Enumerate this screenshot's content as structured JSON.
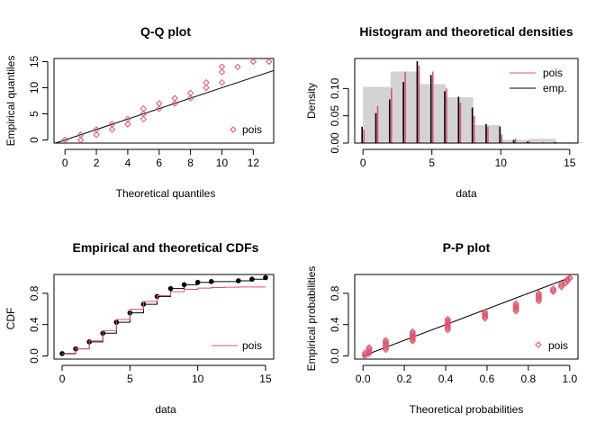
{
  "colors": {
    "theoretical": "#DF536B",
    "empirical": "#000000",
    "hist_fill": "#D3D3D3"
  },
  "chart_data": [
    {
      "type": "scatter",
      "title": "Q-Q plot",
      "xlabel": "Theoretical quantiles",
      "ylabel": "Empirical quantiles",
      "xlim": [
        -0.7,
        13.3
      ],
      "ylim": [
        -0.6,
        15.6
      ],
      "xticks": [
        0,
        2,
        4,
        6,
        8,
        10,
        12
      ],
      "yticks": [
        0,
        5,
        10,
        15
      ],
      "legend": [
        "pois"
      ],
      "legend_position": "bottom-right",
      "reference_line": [
        [
          -1,
          -1
        ],
        [
          14,
          14
        ]
      ],
      "x": [
        0,
        1,
        1,
        2,
        2,
        3,
        3,
        4,
        4,
        5,
        5,
        5,
        6,
        6,
        7,
        7,
        8,
        8,
        9,
        9,
        10,
        10,
        10,
        11,
        12,
        13
      ],
      "y": [
        0,
        0,
        1,
        1,
        2,
        2,
        3,
        3,
        4,
        4,
        5,
        6,
        6,
        7,
        7,
        8,
        8,
        9,
        10,
        11,
        11,
        13,
        14,
        14,
        15,
        15
      ]
    },
    {
      "type": "bar",
      "title": "Histogram and theoretical densities",
      "xlabel": "data",
      "ylabel": "Density",
      "xlim": [
        -0.6,
        15.6
      ],
      "ylim": [
        0,
        0.155
      ],
      "xticks": [
        0,
        5,
        10,
        15
      ],
      "yticks": [
        0.0,
        0.05,
        0.1
      ],
      "ytick_labels": [
        "0.00",
        "0.05",
        "0.10"
      ],
      "legend": [
        "pois",
        "emp."
      ],
      "legend_position": "top-right",
      "histogram": {
        "bins": [
          [
            0,
            2
          ],
          [
            2,
            4
          ],
          [
            4,
            6
          ],
          [
            6,
            8
          ],
          [
            8,
            10
          ],
          [
            10,
            12
          ],
          [
            12,
            14
          ],
          [
            14,
            16
          ]
        ],
        "density": [
          0.103,
          0.131,
          0.108,
          0.084,
          0.033,
          0.006,
          0.008,
          0.002
        ]
      },
      "x": [
        0,
        1,
        2,
        3,
        4,
        5,
        6,
        7,
        8,
        9,
        10,
        11,
        12,
        13,
        14,
        15
      ],
      "series": [
        {
          "name": "pois",
          "values": [
            0.024,
            0.068,
            0.1,
            0.131,
            0.142,
            0.131,
            0.1,
            0.074,
            0.05,
            0.03,
            0.016,
            0.008,
            0.004,
            0.002,
            0.001,
            0.0005
          ]
        },
        {
          "name": "emp.",
          "values": [
            0.03,
            0.055,
            0.08,
            0.112,
            0.15,
            0.125,
            0.095,
            0.085,
            0.065,
            0.035,
            0.03,
            0.006,
            0.003,
            0.0,
            0.002,
            0.001
          ]
        }
      ]
    },
    {
      "type": "line",
      "title": "Empirical and theoretical CDFs",
      "xlabel": "data",
      "ylabel": "CDF",
      "xlim": [
        -0.6,
        15.6
      ],
      "ylim": [
        -0.04,
        1.04
      ],
      "xticks": [
        0,
        5,
        10,
        15
      ],
      "yticks": [
        0.0,
        0.4,
        0.8
      ],
      "ytick_labels": [
        "0.0",
        "0.4",
        "0.8"
      ],
      "legend": [
        "pois"
      ],
      "legend_position": "bottom-right",
      "series": [
        {
          "name": "empirical",
          "x": [
            0,
            1,
            2,
            3,
            4,
            5,
            6,
            7,
            8,
            9,
            10,
            11,
            13,
            14,
            15
          ],
          "values": [
            0.03,
            0.09,
            0.18,
            0.29,
            0.43,
            0.55,
            0.66,
            0.76,
            0.86,
            0.91,
            0.94,
            0.95,
            0.96,
            0.98,
            1.0
          ]
        },
        {
          "name": "pois",
          "x": [
            0,
            1,
            2,
            3,
            4,
            5,
            6,
            7,
            8,
            9,
            10,
            11,
            12,
            13,
            14,
            15
          ],
          "values": [
            0.024,
            0.092,
            0.192,
            0.323,
            0.465,
            0.596,
            0.696,
            0.77,
            0.82,
            0.85,
            0.866,
            0.874,
            0.878,
            0.88,
            0.881,
            0.882
          ]
        }
      ]
    },
    {
      "type": "scatter",
      "title": "P-P plot",
      "xlabel": "Theoretical probabilities",
      "ylabel": "Empirical probabilities",
      "xlim": [
        -0.04,
        1.04
      ],
      "ylim": [
        -0.04,
        1.04
      ],
      "xticks": [
        0.0,
        0.2,
        0.4,
        0.6,
        0.8,
        1.0
      ],
      "yticks": [
        0.0,
        0.4,
        0.8
      ],
      "xtick_labels": [
        "0.0",
        "0.2",
        "0.4",
        "0.6",
        "0.8",
        "1.0"
      ],
      "ytick_labels": [
        "0.0",
        "0.4",
        "0.8"
      ],
      "legend": [
        "pois"
      ],
      "legend_position": "bottom-right",
      "reference_line": [
        [
          0,
          0
        ],
        [
          1,
          1
        ]
      ],
      "groups": [
        {
          "x": 0.01,
          "y": [
            0.0,
            0.02,
            0.04
          ]
        },
        {
          "x": 0.03,
          "y": [
            0.03,
            0.05,
            0.07,
            0.09,
            0.11
          ]
        },
        {
          "x": 0.11,
          "y": [
            0.08,
            0.1,
            0.12,
            0.14,
            0.16,
            0.18,
            0.2
          ]
        },
        {
          "x": 0.24,
          "y": [
            0.19,
            0.21,
            0.23,
            0.25,
            0.27,
            0.29,
            0.31
          ]
        },
        {
          "x": 0.41,
          "y": [
            0.33,
            0.35,
            0.37,
            0.39,
            0.41,
            0.43,
            0.45,
            0.47
          ]
        },
        {
          "x": 0.59,
          "y": [
            0.48,
            0.5,
            0.52,
            0.54,
            0.56
          ]
        },
        {
          "x": 0.74,
          "y": [
            0.57,
            0.59,
            0.61,
            0.63,
            0.65,
            0.67
          ]
        },
        {
          "x": 0.85,
          "y": [
            0.7,
            0.72,
            0.74,
            0.76,
            0.78,
            0.8
          ]
        },
        {
          "x": 0.92,
          "y": [
            0.82,
            0.84,
            0.86
          ]
        },
        {
          "x": 0.96,
          "y": [
            0.88,
            0.9,
            0.92
          ]
        },
        {
          "x": 0.98,
          "y": [
            0.93,
            0.95
          ]
        },
        {
          "x": 0.99,
          "y": [
            0.96,
            0.98
          ]
        },
        {
          "x": 1.0,
          "y": [
            0.99,
            1.0
          ]
        }
      ]
    }
  ]
}
